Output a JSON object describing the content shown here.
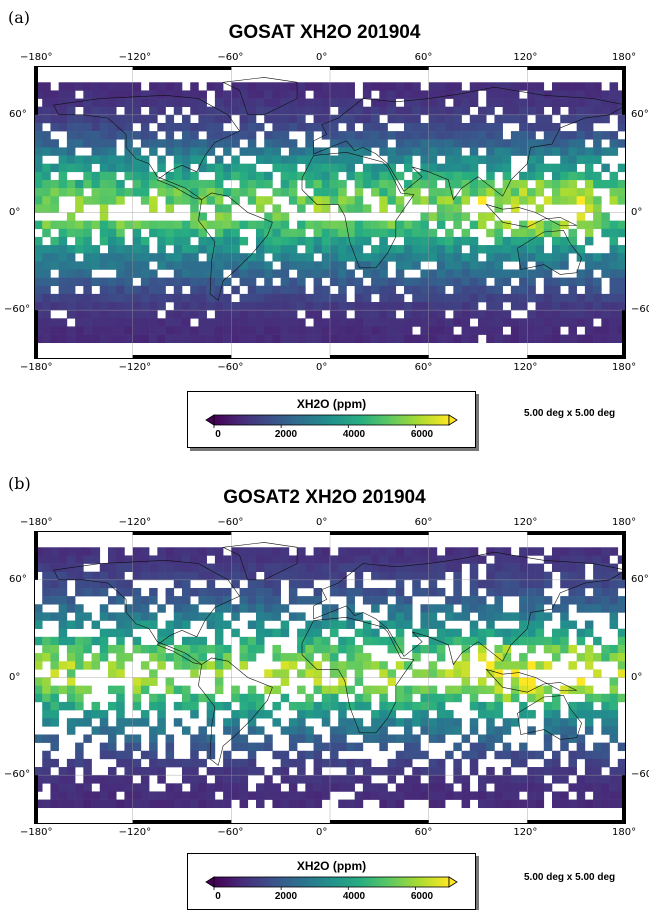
{
  "panels": [
    {
      "label": "(a)",
      "title": "GOSAT XH2O 201904",
      "resolution_note": "5.00 deg x 5.00 deg",
      "seed": 17,
      "density": "sparse"
    },
    {
      "label": "(b)",
      "title": "GOSAT2 XH2O 201904",
      "resolution_note": "5.00 deg x 5.00 deg",
      "seed": 91,
      "density": "dense"
    }
  ],
  "axes": {
    "lon_ticks": [
      "−180°",
      "−120°",
      "−60°",
      "0°",
      "60°",
      "120°",
      "180°"
    ],
    "lat_ticks_left": [
      "60°",
      "0°",
      "−60°"
    ],
    "lat_ticks_right": [
      "60°",
      "0°",
      "−60"
    ]
  },
  "colorbar": {
    "title": "XH2O (ppm)",
    "ticks": [
      "0",
      "2000",
      "4000",
      "6000"
    ],
    "range": [
      0,
      7000
    ],
    "colormap": "viridis",
    "colors": [
      "#440154",
      "#472d7b",
      "#3b528b",
      "#2c728e",
      "#21918c",
      "#28ae80",
      "#5ec962",
      "#addc30",
      "#fde725"
    ]
  },
  "chart_data": [
    {
      "type": "heatmap",
      "title": "GOSAT XH2O 201904",
      "grid_resolution_deg": 5,
      "x_range_deg": [
        -180,
        180
      ],
      "y_range_deg": [
        -90,
        90
      ],
      "value_range": [
        0,
        7000
      ],
      "latitude_profile": {
        "lat_deg": [
          85,
          75,
          65,
          55,
          45,
          35,
          25,
          15,
          5,
          -5,
          -15,
          -25,
          -35,
          -45,
          -55,
          -65,
          -75
        ],
        "typical_xh2o_ppm": [
          800,
          900,
          1100,
          1400,
          2000,
          3000,
          3900,
          4800,
          5600,
          5300,
          4300,
          3300,
          2500,
          1800,
          1300,
          950,
          850
        ]
      }
    },
    {
      "type": "heatmap",
      "title": "GOSAT2 XH2O 201904",
      "grid_resolution_deg": 5,
      "x_range_deg": [
        -180,
        180
      ],
      "y_range_deg": [
        -90,
        90
      ],
      "value_range": [
        0,
        7000
      ],
      "latitude_profile": {
        "lat_deg": [
          85,
          75,
          65,
          55,
          45,
          35,
          25,
          15,
          5,
          -5,
          -15,
          -25,
          -35,
          -45,
          -55,
          -65,
          -75
        ],
        "typical_xh2o_ppm": [
          900,
          1000,
          1300,
          1600,
          2200,
          3200,
          4100,
          5000,
          6000,
          5600,
          4400,
          3300,
          2400,
          1700,
          1200,
          950,
          850
        ]
      }
    }
  ]
}
